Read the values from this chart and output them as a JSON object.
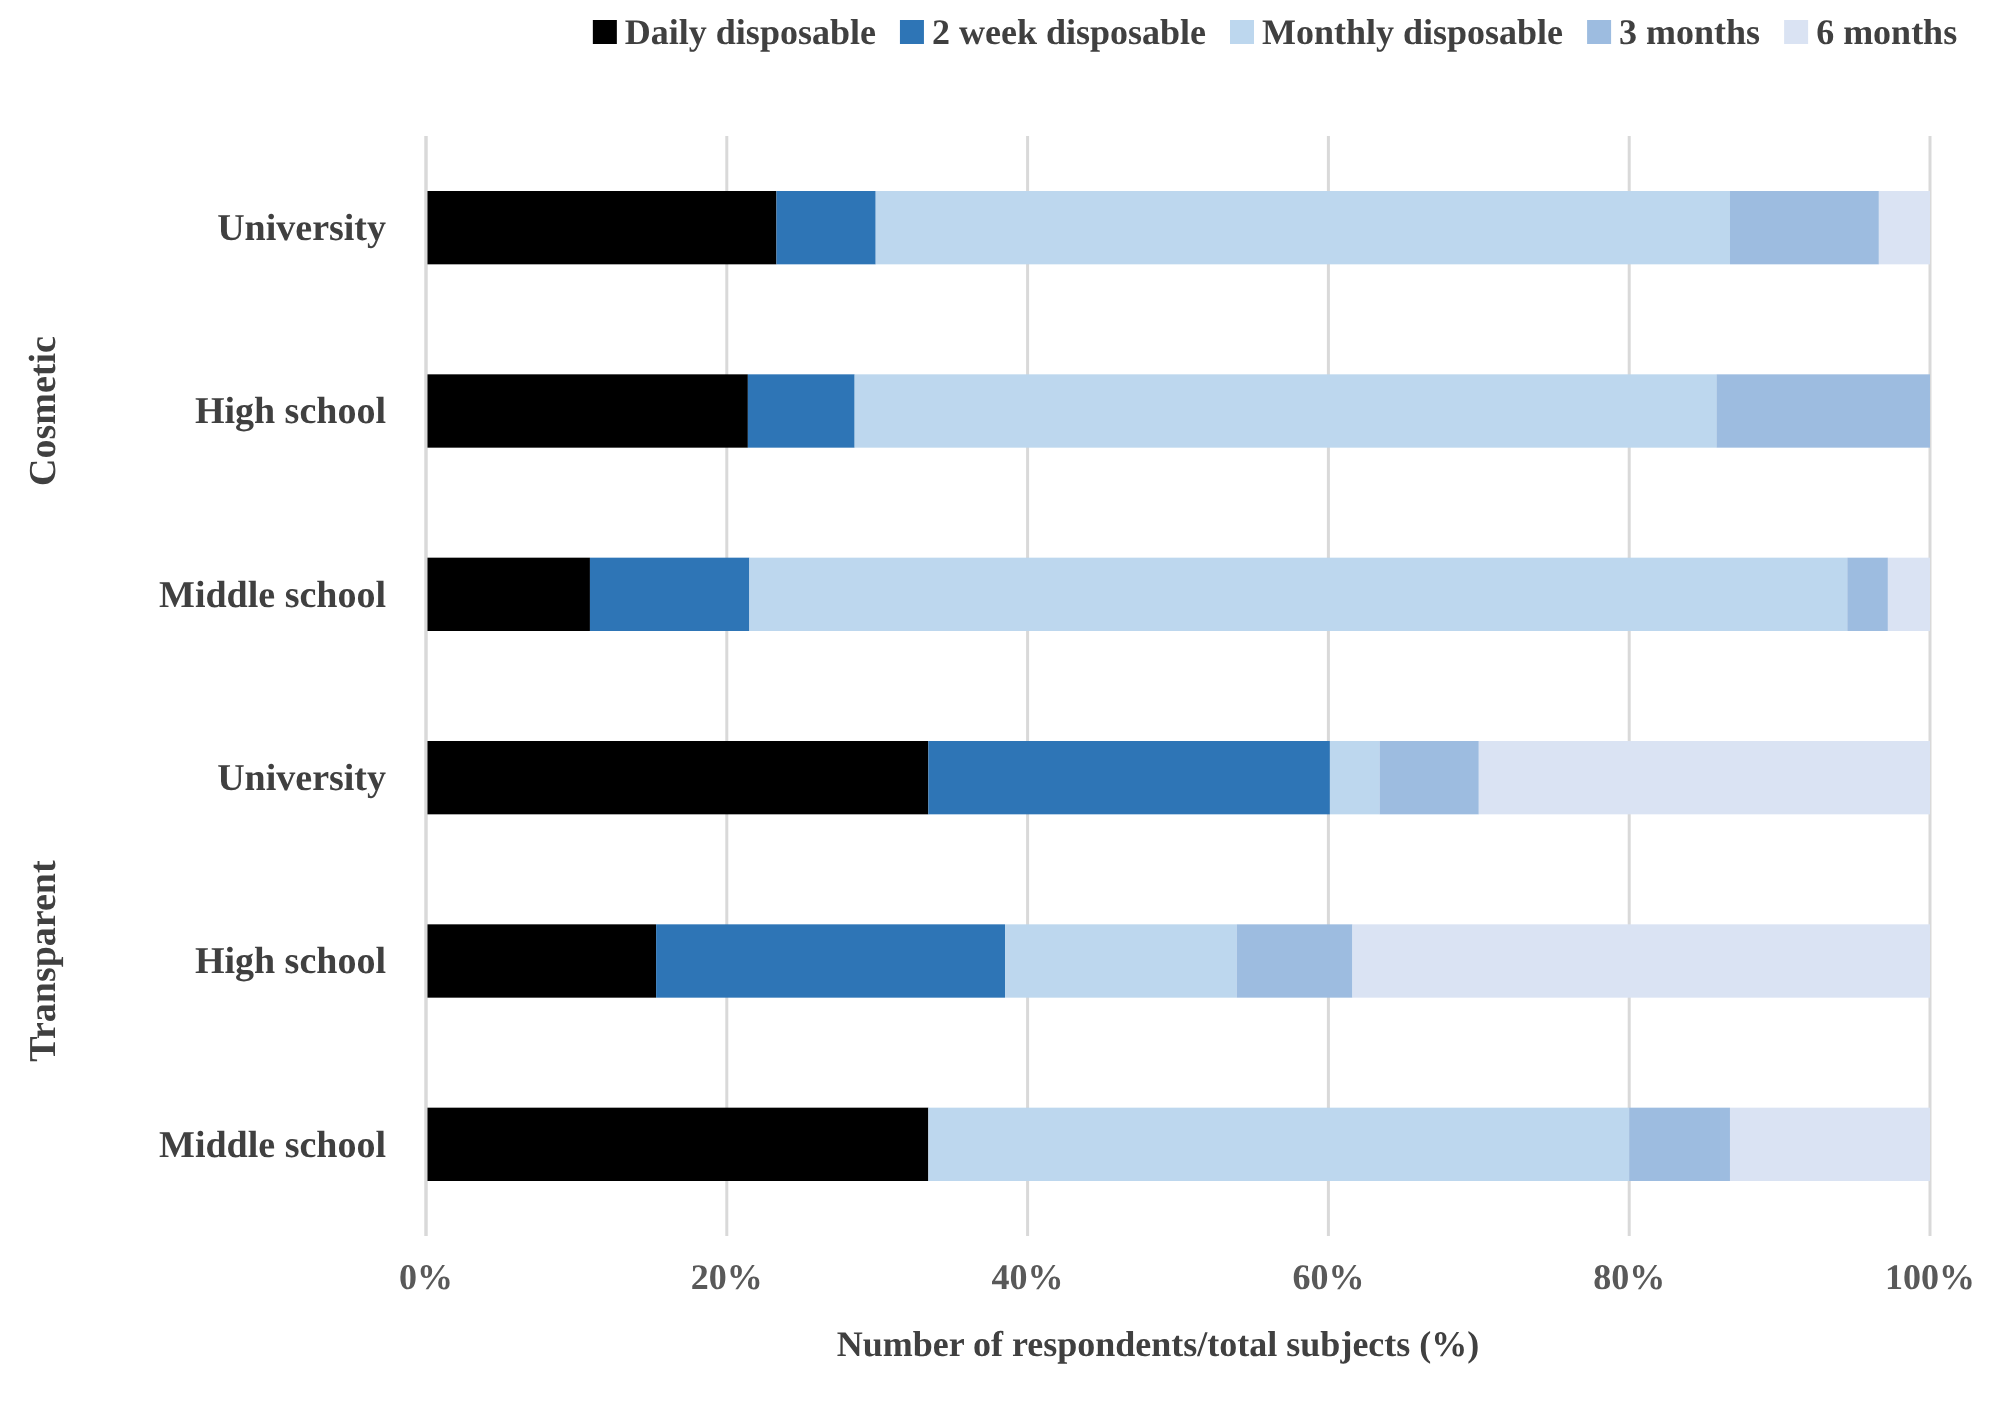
{
  "chart_data": {
    "type": "bar",
    "orientation": "horizontal",
    "stacked": true,
    "categories": [
      "University",
      "High school",
      "Middle school",
      "University",
      "High school",
      "Middle school"
    ],
    "series": [
      {
        "name": "Daily disposable",
        "color": "#000000",
        "values": [
          23.3,
          21.4,
          10.9,
          33.4,
          15.3,
          33.4
        ]
      },
      {
        "name": "2 week disposable",
        "color": "#2e75b6",
        "values": [
          6.6,
          7.1,
          10.6,
          26.7,
          23.2,
          0
        ]
      },
      {
        "name": "Monthly disposable",
        "color": "#bdd7ee",
        "values": [
          56.8,
          57.3,
          73.0,
          3.3,
          15.4,
          46.6
        ]
      },
      {
        "name": "3 months",
        "color": "#9dbce0",
        "values": [
          9.9,
          14.2,
          2.7,
          6.6,
          7.7,
          6.7
        ]
      },
      {
        "name": "6 months",
        "color": "#dae3f3",
        "values": [
          3.4,
          0,
          2.8,
          30.0,
          38.4,
          13.3
        ]
      }
    ],
    "xlabel": "Number of respondents/total subjects (%)",
    "annotations": [
      "Cosmetic",
      "Transparent"
    ],
    "xlim": [
      0,
      100
    ],
    "xticks": [
      {
        "value": 0,
        "label": "0%"
      },
      {
        "value": 20,
        "label": "20%"
      },
      {
        "value": 40,
        "label": "40%"
      },
      {
        "value": 60,
        "label": "60%"
      },
      {
        "value": 80,
        "label": "80%"
      },
      {
        "value": 100,
        "label": "100%"
      }
    ],
    "grid": "x",
    "legend": "top"
  }
}
